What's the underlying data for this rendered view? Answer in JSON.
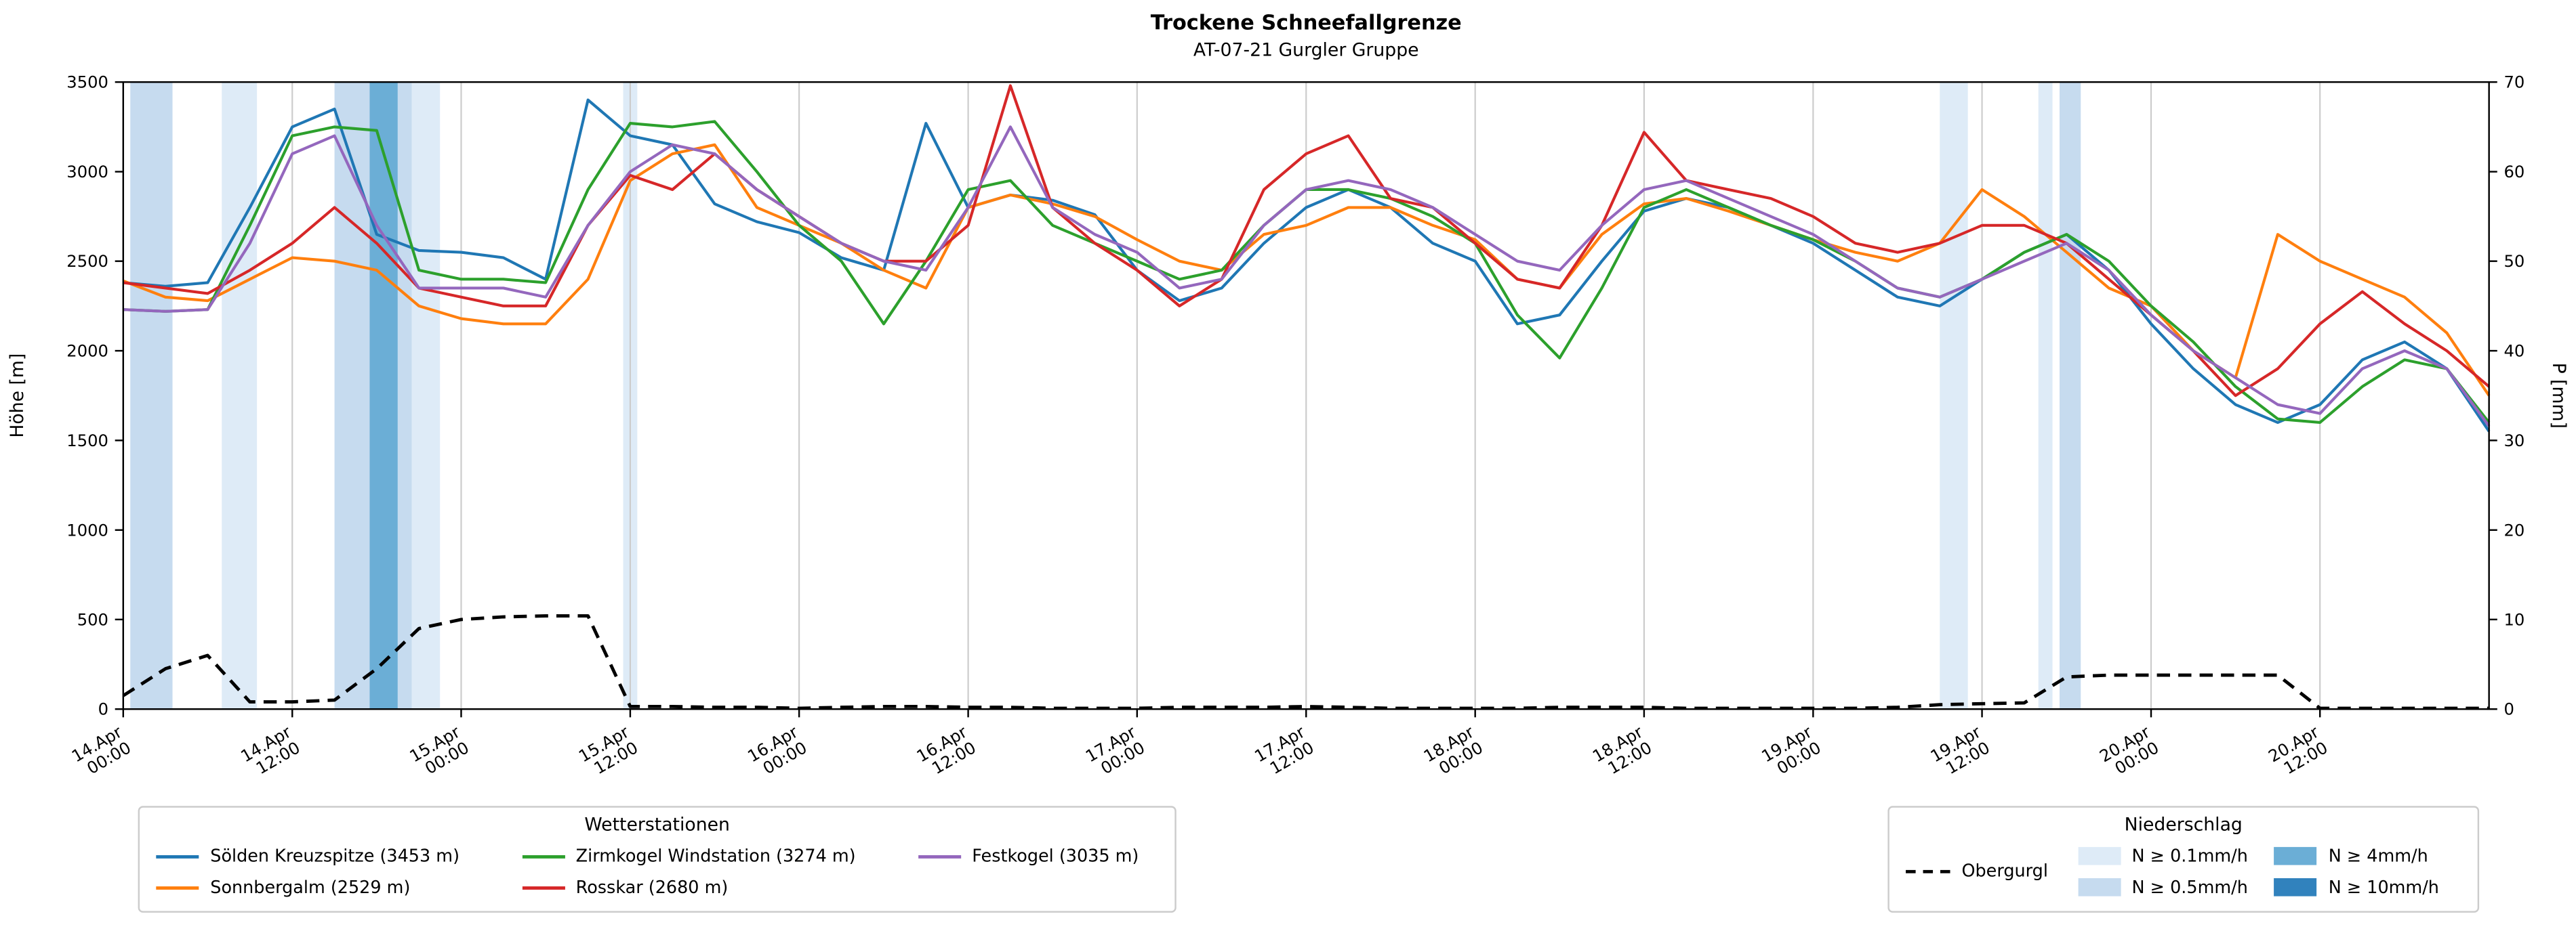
{
  "chart_data": {
    "type": "line",
    "title": "Trockene Schneefallgrenze",
    "subtitle": "AT-07-21 Gurgler Gruppe",
    "grid": true,
    "grid_color": "#cccccc",
    "x_axis": {
      "unit": "time",
      "range_hours": [
        0,
        168
      ],
      "ticks_h": [
        0,
        12,
        24,
        36,
        48,
        60,
        72,
        84,
        96,
        108,
        120,
        132,
        144,
        156
      ],
      "tick_labels": [
        [
          "14.Apr",
          "00:00"
        ],
        [
          "14.Apr",
          "12:00"
        ],
        [
          "15.Apr",
          "00:00"
        ],
        [
          "15.Apr",
          "12:00"
        ],
        [
          "16.Apr",
          "00:00"
        ],
        [
          "16.Apr",
          "12:00"
        ],
        [
          "17.Apr",
          "00:00"
        ],
        [
          "17.Apr",
          "12:00"
        ],
        [
          "18.Apr",
          "00:00"
        ],
        [
          "18.Apr",
          "12:00"
        ],
        [
          "19.Apr",
          "00:00"
        ],
        [
          "19.Apr",
          "12:00"
        ],
        [
          "20.Apr",
          "00:00"
        ],
        [
          "20.Apr",
          "12:00"
        ]
      ]
    },
    "y_left": {
      "label": "Höhe [m]",
      "min": 0,
      "max": 3500,
      "ticks": [
        0,
        500,
        1000,
        1500,
        2000,
        2500,
        3000,
        3500
      ]
    },
    "y_right": {
      "label": "P [mm]",
      "min": 0,
      "max": 70,
      "ticks": [
        0,
        10,
        20,
        30,
        40,
        50,
        60,
        70
      ]
    },
    "x_hours": [
      0,
      3,
      6,
      9,
      12,
      15,
      18,
      21,
      24,
      27,
      30,
      33,
      36,
      39,
      42,
      45,
      48,
      51,
      54,
      57,
      60,
      63,
      66,
      69,
      72,
      75,
      78,
      81,
      84,
      87,
      90,
      93,
      96,
      99,
      102,
      105,
      108,
      111,
      114,
      117,
      120,
      123,
      126,
      129,
      132,
      135,
      138,
      141,
      144,
      147,
      150,
      153,
      156,
      159,
      162,
      165,
      168
    ],
    "series": [
      {
        "name": "Sölden Kreuzspitze (3453 m)",
        "color": "#1f77b4",
        "axis": "left",
        "values_m": [
          2380,
          2360,
          2380,
          2800,
          3250,
          3350,
          2650,
          2560,
          2550,
          2520,
          2400,
          3400,
          3200,
          3150,
          2820,
          2720,
          2660,
          2520,
          2450,
          3270,
          2800,
          2870,
          2840,
          2760,
          2450,
          2280,
          2350,
          2600,
          2800,
          2900,
          2800,
          2600,
          2500,
          2150,
          2200,
          2500,
          2780,
          2850,
          2800,
          2700,
          2600,
          2450,
          2300,
          2250,
          2400,
          2550,
          2650,
          2450,
          2150,
          1900,
          1700,
          1600,
          1700,
          1950,
          2050,
          1900,
          1550
        ]
      },
      {
        "name": "Sonnbergalm (2529 m)",
        "color": "#ff7f0e",
        "axis": "left",
        "values_m": [
          2390,
          2300,
          2280,
          2400,
          2520,
          2500,
          2450,
          2250,
          2180,
          2150,
          2150,
          2400,
          2950,
          3100,
          3150,
          2800,
          2700,
          2600,
          2450,
          2350,
          2800,
          2870,
          2820,
          2750,
          2620,
          2500,
          2450,
          2650,
          2700,
          2800,
          2800,
          2700,
          2620,
          2400,
          2350,
          2650,
          2820,
          2850,
          2780,
          2700,
          2620,
          2550,
          2500,
          2600,
          2900,
          2750,
          2550,
          2350,
          2250,
          2000,
          1850,
          2650,
          2500,
          2400,
          2300,
          2100,
          1750
        ]
      },
      {
        "name": "Zirmkogel Windstation (3274 m)",
        "color": "#2ca02c",
        "axis": "left",
        "values_m": [
          2230,
          2220,
          2230,
          2700,
          3200,
          3250,
          3230,
          2450,
          2400,
          2400,
          2380,
          2900,
          3270,
          3250,
          3280,
          3000,
          2700,
          2500,
          2150,
          2500,
          2900,
          2950,
          2700,
          2600,
          2500,
          2400,
          2450,
          2700,
          2900,
          2900,
          2850,
          2750,
          2600,
          2200,
          1960,
          2350,
          2800,
          2900,
          2800,
          2700,
          2620,
          2500,
          2350,
          2300,
          2400,
          2550,
          2650,
          2500,
          2250,
          2050,
          1800,
          1620,
          1600,
          1800,
          1950,
          1900,
          1600
        ]
      },
      {
        "name": "Rosskar (2680 m)",
        "color": "#d62728",
        "axis": "left",
        "values_m": [
          2380,
          2350,
          2320,
          2450,
          2600,
          2800,
          2600,
          2350,
          2300,
          2250,
          2250,
          2700,
          2980,
          2900,
          3100,
          2900,
          2750,
          2600,
          2500,
          2500,
          2700,
          3480,
          2800,
          2600,
          2450,
          2250,
          2400,
          2900,
          3100,
          3200,
          2850,
          2800,
          2600,
          2400,
          2350,
          2700,
          3220,
          2950,
          2900,
          2850,
          2750,
          2600,
          2550,
          2600,
          2700,
          2700,
          2600,
          2400,
          2200,
          2000,
          1750,
          1900,
          2150,
          2330,
          2150,
          2000,
          1800
        ]
      },
      {
        "name": "Festkogel (3035 m)",
        "color": "#9467bd",
        "axis": "left",
        "values_m": [
          2230,
          2220,
          2230,
          2600,
          3100,
          3200,
          2700,
          2350,
          2350,
          2350,
          2300,
          2700,
          3000,
          3150,
          3100,
          2900,
          2750,
          2600,
          2500,
          2450,
          2800,
          3250,
          2800,
          2650,
          2550,
          2350,
          2400,
          2700,
          2900,
          2950,
          2900,
          2800,
          2650,
          2500,
          2450,
          2700,
          2900,
          2950,
          2850,
          2750,
          2650,
          2500,
          2350,
          2300,
          2400,
          2500,
          2600,
          2450,
          2200,
          2000,
          1850,
          1700,
          1650,
          1900,
          2000,
          1900,
          1580
        ]
      }
    ],
    "precip_line": {
      "name": "Obergurgl",
      "color": "#000000",
      "dash": true,
      "axis": "right",
      "values_mm": [
        1.5,
        4.5,
        6.0,
        0.8,
        0.8,
        1.0,
        4.5,
        9.0,
        10.0,
        10.3,
        10.4,
        10.4,
        0.3,
        0.3,
        0.2,
        0.2,
        0.1,
        0.2,
        0.3,
        0.3,
        0.2,
        0.2,
        0.1,
        0.1,
        0.1,
        0.2,
        0.2,
        0.2,
        0.3,
        0.2,
        0.1,
        0.1,
        0.1,
        0.1,
        0.2,
        0.2,
        0.2,
        0.1,
        0.1,
        0.1,
        0.1,
        0.1,
        0.2,
        0.5,
        0.6,
        0.7,
        3.6,
        3.8,
        3.8,
        3.8,
        3.8,
        3.8,
        0.1,
        0.1,
        0.1,
        0.1,
        0.1
      ]
    },
    "precip_bands": [
      {
        "start_h": 0.5,
        "end_h": 3.5,
        "level": "0.5"
      },
      {
        "start_h": 7.0,
        "end_h": 9.5,
        "level": "0.1"
      },
      {
        "start_h": 15.0,
        "end_h": 17.5,
        "level": "0.5"
      },
      {
        "start_h": 17.5,
        "end_h": 19.5,
        "level": "4"
      },
      {
        "start_h": 19.5,
        "end_h": 20.5,
        "level": "0.5"
      },
      {
        "start_h": 20.5,
        "end_h": 22.5,
        "level": "0.1"
      },
      {
        "start_h": 35.5,
        "end_h": 36.5,
        "level": "0.1"
      },
      {
        "start_h": 129.0,
        "end_h": 131.0,
        "level": "0.1"
      },
      {
        "start_h": 136.0,
        "end_h": 137.0,
        "level": "0.1"
      },
      {
        "start_h": 137.5,
        "end_h": 139.0,
        "level": "0.5"
      }
    ],
    "band_colors": {
      "0.1": "#deebf7",
      "0.5": "#c6dbef",
      "4": "#6baed6",
      "10": "#3182bd"
    }
  },
  "legend_stations": {
    "title": "Wetterstationen",
    "items": [
      {
        "label": "Sölden Kreuzspitze (3453 m)",
        "color": "#1f77b4"
      },
      {
        "label": "Sonnbergalm (2529 m)",
        "color": "#ff7f0e"
      },
      {
        "label": "Zirmkogel Windstation (3274 m)",
        "color": "#2ca02c"
      },
      {
        "label": "Rosskar (2680 m)",
        "color": "#d62728"
      },
      {
        "label": "Festkogel (3035 m)",
        "color": "#9467bd"
      }
    ]
  },
  "legend_precip": {
    "title": "Niederschlag",
    "obergurgl_label": "Obergurgl",
    "items": [
      {
        "label": "N ≥ 0.1mm/h",
        "level": "0.1"
      },
      {
        "label": "N ≥ 0.5mm/h",
        "level": "0.5"
      },
      {
        "label": "N ≥ 4mm/h",
        "level": "4"
      },
      {
        "label": "N ≥ 10mm/h",
        "level": "10"
      }
    ]
  }
}
